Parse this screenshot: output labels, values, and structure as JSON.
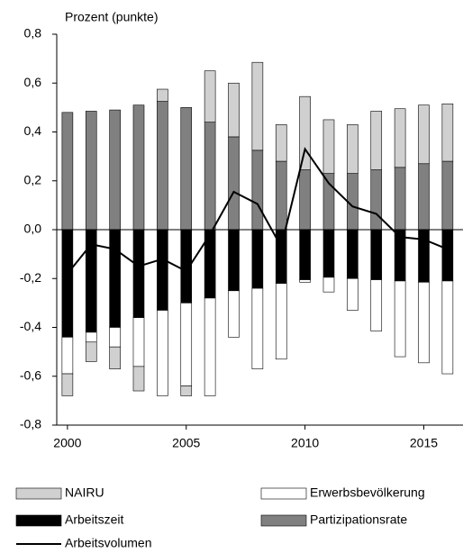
{
  "chart_data": {
    "type": "bar",
    "title": "Prozent (punkte)",
    "x": [
      2000,
      2001,
      2002,
      2003,
      2004,
      2005,
      2006,
      2007,
      2008,
      2009,
      2010,
      2011,
      2012,
      2013,
      2014,
      2015,
      2016
    ],
    "xlim": [
      1999.55,
      2016.65
    ],
    "xticks": [
      2000,
      2005,
      2010,
      2015
    ],
    "ylim": [
      -0.8,
      0.8
    ],
    "yticks": [
      {
        "value": -0.8,
        "label": "-0,8"
      },
      {
        "value": -0.6,
        "label": "-0,6"
      },
      {
        "value": -0.4,
        "label": "-0,4"
      },
      {
        "value": -0.2,
        "label": "-0,2"
      },
      {
        "value": 0,
        "label": "0,0"
      },
      {
        "value": 0.2,
        "label": "0,2"
      },
      {
        "value": 0.4,
        "label": "0,4"
      },
      {
        "value": 0.6,
        "label": "0,6"
      },
      {
        "value": 0.8,
        "label": "0,8"
      }
    ],
    "stacked": true,
    "series": [
      {
        "name": "NAIRU",
        "color": "#d0d0d0",
        "type": "bar",
        "values": [
          -0.09,
          -0.08,
          -0.09,
          -0.1,
          0.05,
          -0.04,
          0.21,
          0.22,
          0.36,
          0.15,
          0.3,
          0.22,
          0.2,
          0.24,
          0.24,
          0.24,
          0.235
        ]
      },
      {
        "name": "Erwerbsbevölkerung",
        "color": "#ffffff",
        "type": "bar",
        "values": [
          -0.15,
          -0.04,
          -0.08,
          -0.2,
          -0.35,
          -0.34,
          -0.4,
          -0.19,
          -0.33,
          -0.31,
          -0.01,
          -0.06,
          -0.13,
          -0.21,
          -0.31,
          -0.33,
          -0.38
        ]
      },
      {
        "name": "Arbeitszeit",
        "color": "#000000",
        "type": "bar",
        "values": [
          -0.44,
          -0.42,
          -0.4,
          -0.36,
          -0.33,
          -0.3,
          -0.28,
          -0.25,
          -0.24,
          -0.22,
          -0.205,
          -0.195,
          -0.2,
          -0.205,
          -0.21,
          -0.215,
          -0.21
        ]
      },
      {
        "name": "Partizipationsrate",
        "color": "#808080",
        "type": "bar",
        "values": [
          0.48,
          0.485,
          0.49,
          0.51,
          0.525,
          0.5,
          0.44,
          0.38,
          0.325,
          0.28,
          0.245,
          0.23,
          0.23,
          0.245,
          0.255,
          0.27,
          0.28
        ]
      },
      {
        "name": "Arbeitsvolumen",
        "color": "#000000",
        "type": "line",
        "values": [
          -0.18,
          -0.06,
          -0.08,
          -0.15,
          -0.12,
          -0.17,
          -0.02,
          0.155,
          0.105,
          -0.07,
          0.33,
          0.19,
          0.095,
          0.065,
          -0.03,
          -0.04,
          -0.08
        ]
      }
    ]
  }
}
